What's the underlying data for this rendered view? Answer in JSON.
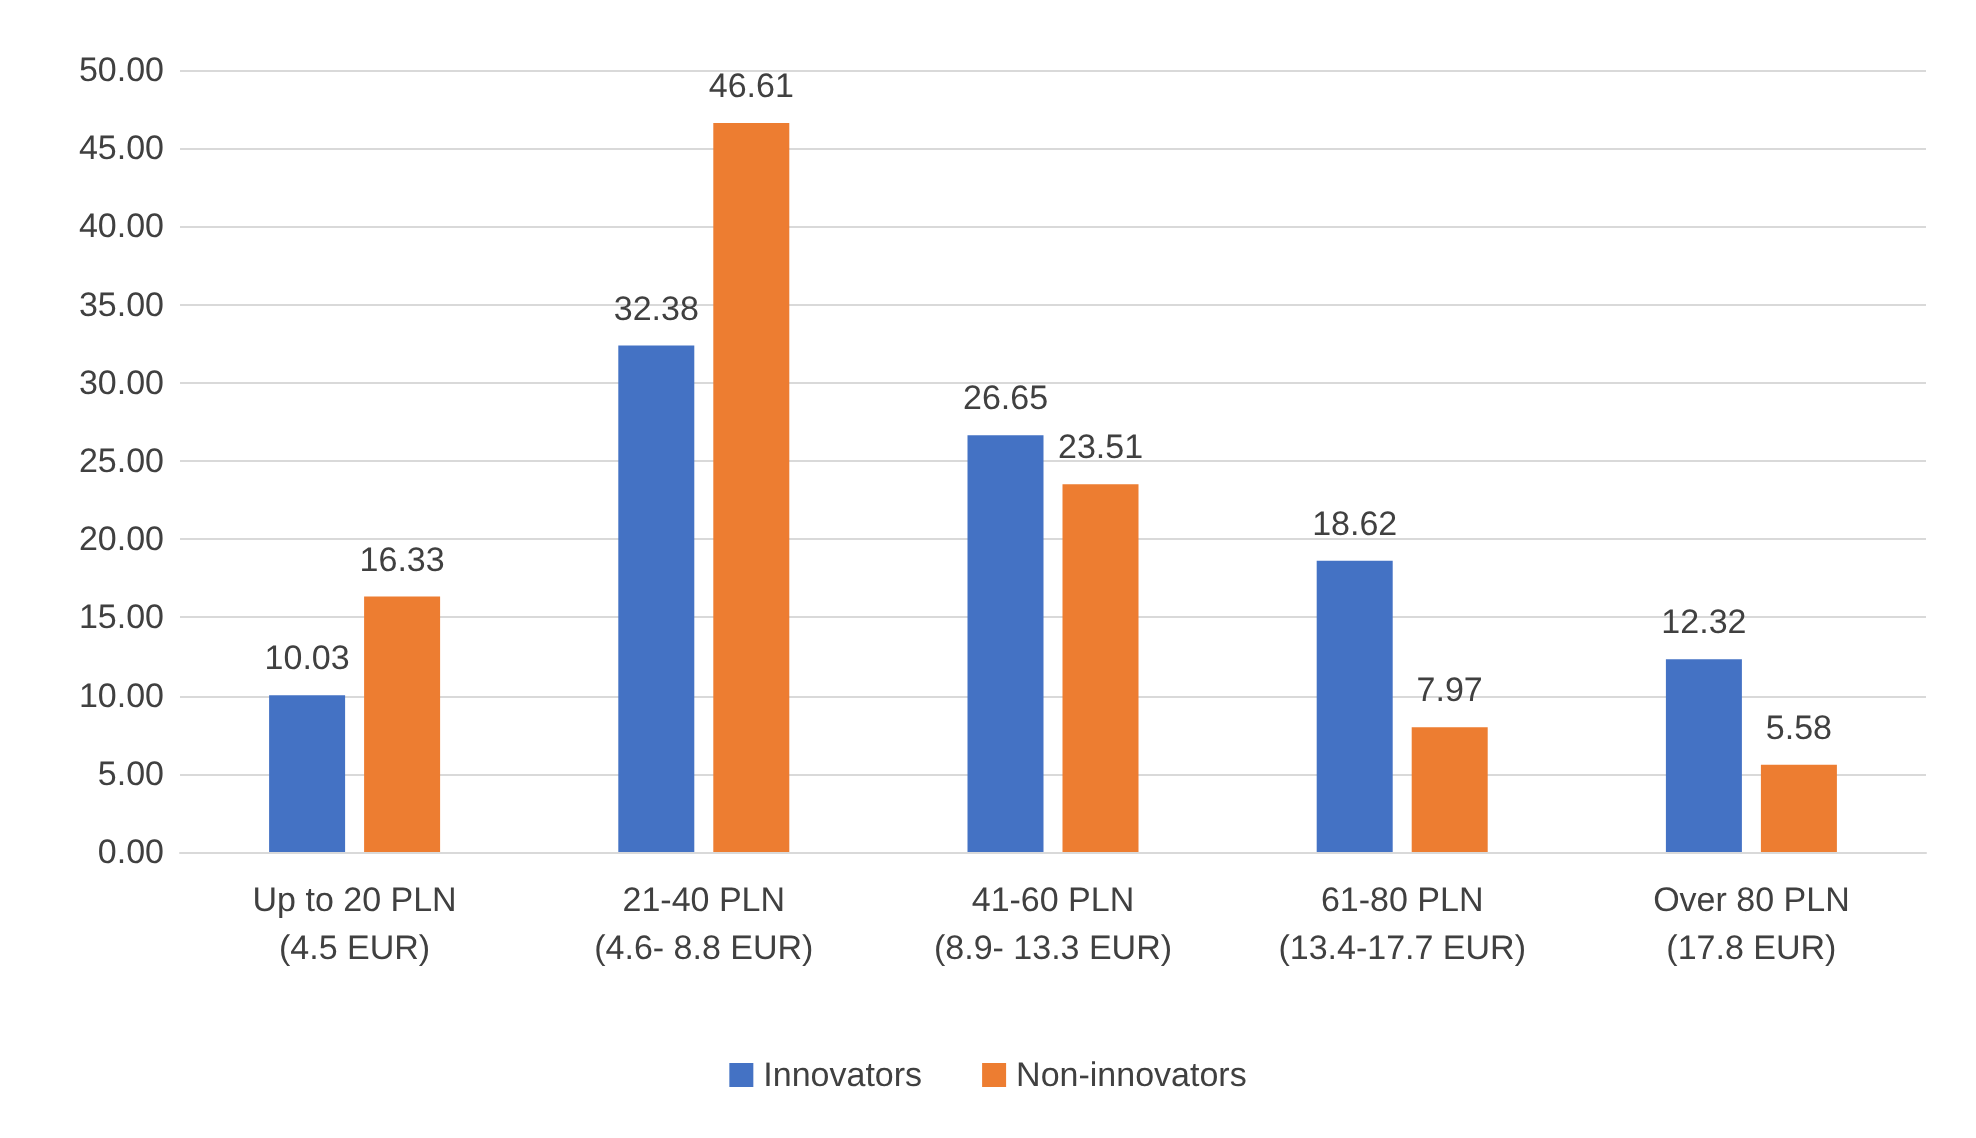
{
  "chart_data": {
    "type": "bar",
    "categories": [
      "Up to 20 PLN\n(4.5 EUR)",
      "21-40 PLN\n(4.6- 8.8 EUR)",
      "41-60 PLN\n(8.9- 13.3 EUR)",
      "61-80 PLN\n(13.4-17.7 EUR)",
      "Over 80 PLN\n(17.8 EUR)"
    ],
    "series": [
      {
        "name": "Innovators",
        "color": "#4472c4",
        "values": [
          10.03,
          32.38,
          26.65,
          18.62,
          12.32
        ]
      },
      {
        "name": "Non-innovators",
        "color": "#ed7d31",
        "values": [
          16.33,
          46.61,
          23.51,
          7.97,
          5.58
        ]
      }
    ],
    "ylim": [
      0,
      50
    ],
    "yticks": [
      {
        "value": 0,
        "label": "0.00"
      },
      {
        "value": 5,
        "label": "5.00"
      },
      {
        "value": 10,
        "label": "10.00"
      },
      {
        "value": 15,
        "label": "15.00"
      },
      {
        "value": 20,
        "label": "20.00"
      },
      {
        "value": 25,
        "label": "25.00"
      },
      {
        "value": 30,
        "label": "30.00"
      },
      {
        "value": 35,
        "label": "35.00"
      },
      {
        "value": 40,
        "label": "40.00"
      },
      {
        "value": 45,
        "label": "45.00"
      },
      {
        "value": 50,
        "label": "50.00"
      }
    ],
    "grid": "y",
    "legend": "bottom",
    "data_labels": true
  }
}
